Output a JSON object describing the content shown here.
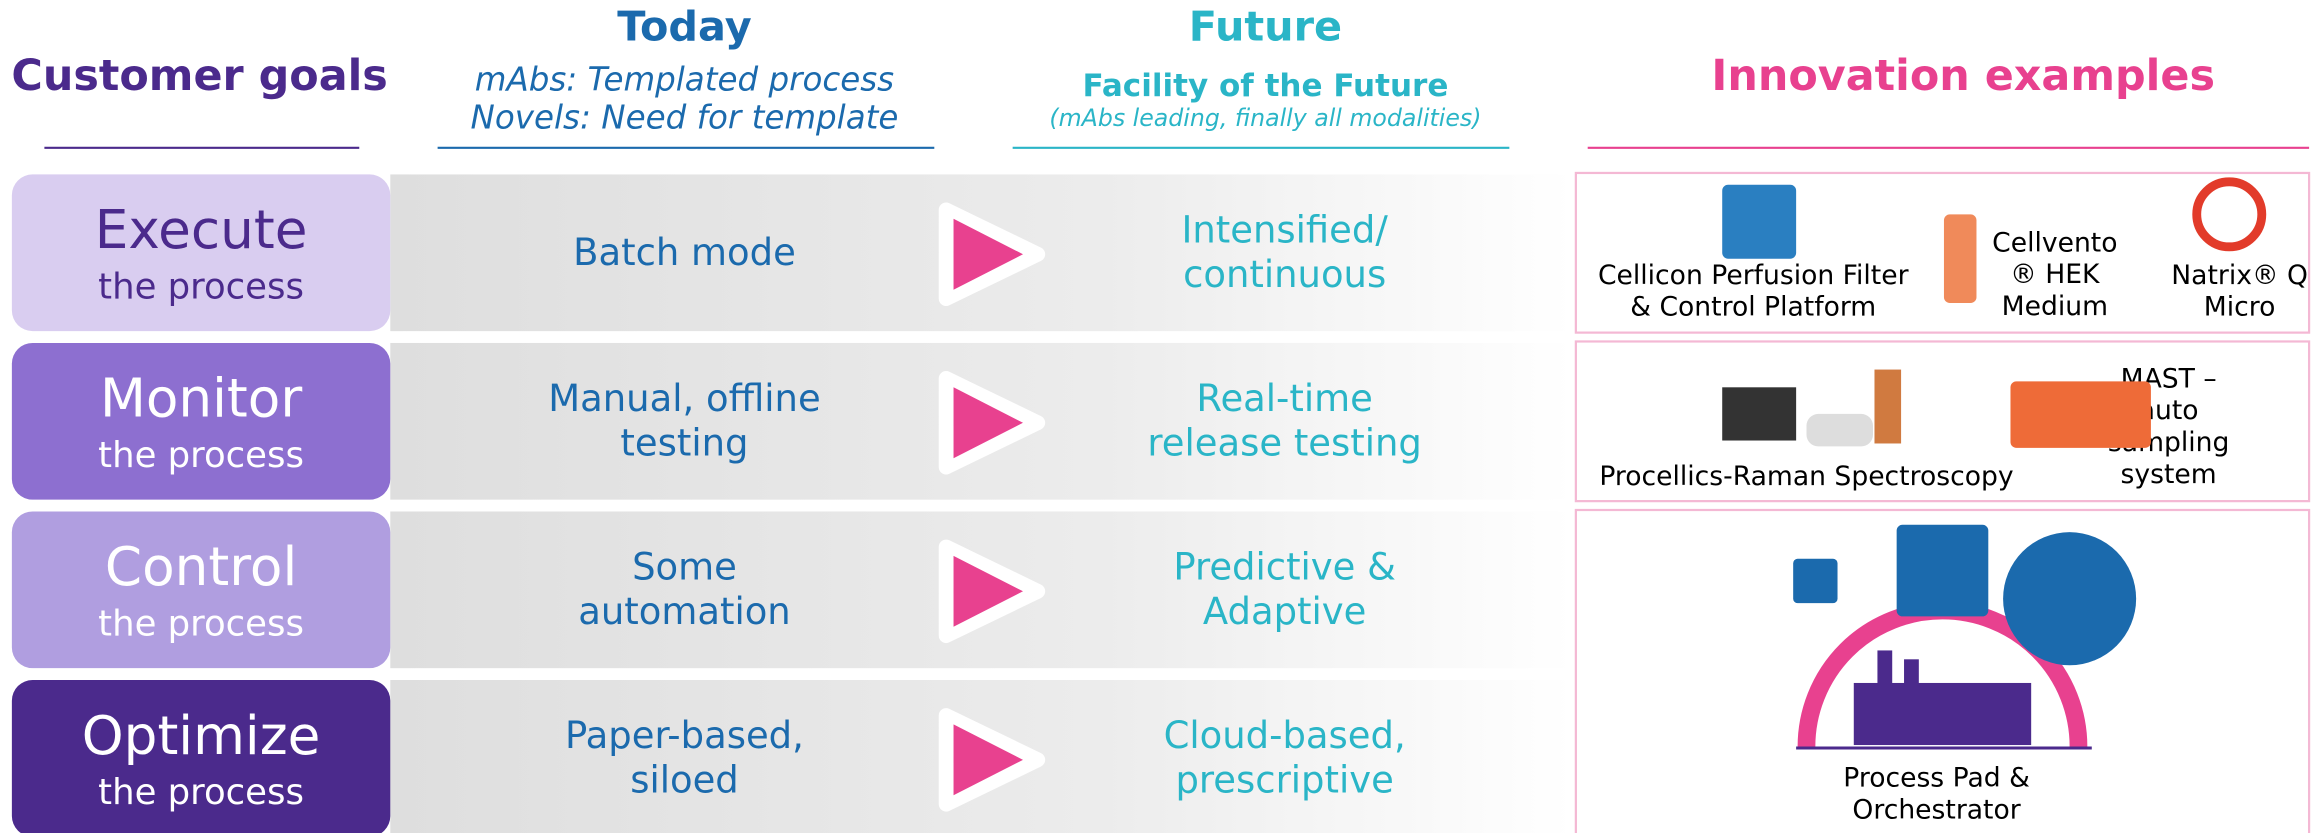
{
  "header": {
    "customer_goals": "Customer goals",
    "today": {
      "title": "Today",
      "lines": [
        "mAbs: Templated process",
        "Novels: Need for template"
      ]
    },
    "future": {
      "title": "Future",
      "subtitle": "Facility of the Future",
      "note": "(mAbs leading, finally all modalities)"
    },
    "innovation": "Innovation examples"
  },
  "rows": [
    {
      "goal": "Execute",
      "sub": "the process",
      "today": [
        "Batch mode"
      ],
      "future": [
        "Intensified/",
        "continuous"
      ],
      "examples": [
        {
          "lines": [
            "Cellicon Perfusion Filter",
            "& Control Platform"
          ]
        },
        {
          "lines": [
            "Cellvento",
            "® HEK",
            "Medium"
          ]
        },
        {
          "lines": [
            "Natrix® Q",
            "Micro"
          ]
        }
      ]
    },
    {
      "goal": "Monitor",
      "sub": "the process",
      "today": [
        "Manual, offline",
        "testing"
      ],
      "future": [
        "Real-time",
        "release testing"
      ],
      "examples": [
        {
          "lines": [
            "Procellics-Raman Spectroscopy"
          ]
        },
        {
          "lines": [
            "MAST –",
            "auto",
            "sampling",
            "system"
          ]
        }
      ]
    },
    {
      "goal": "Control",
      "sub": "the process",
      "today": [
        "Some",
        "automation"
      ],
      "future": [
        "Predictive &",
        "Adaptive"
      ],
      "examples": []
    },
    {
      "goal": "Optimize",
      "sub": "the process",
      "today": [
        "Paper-based,",
        "siloed"
      ],
      "future": [
        "Cloud-based,",
        "prescriptive"
      ],
      "examples": [
        {
          "lines": [
            "Process Pad &",
            "Orchestrator"
          ]
        }
      ]
    }
  ]
}
